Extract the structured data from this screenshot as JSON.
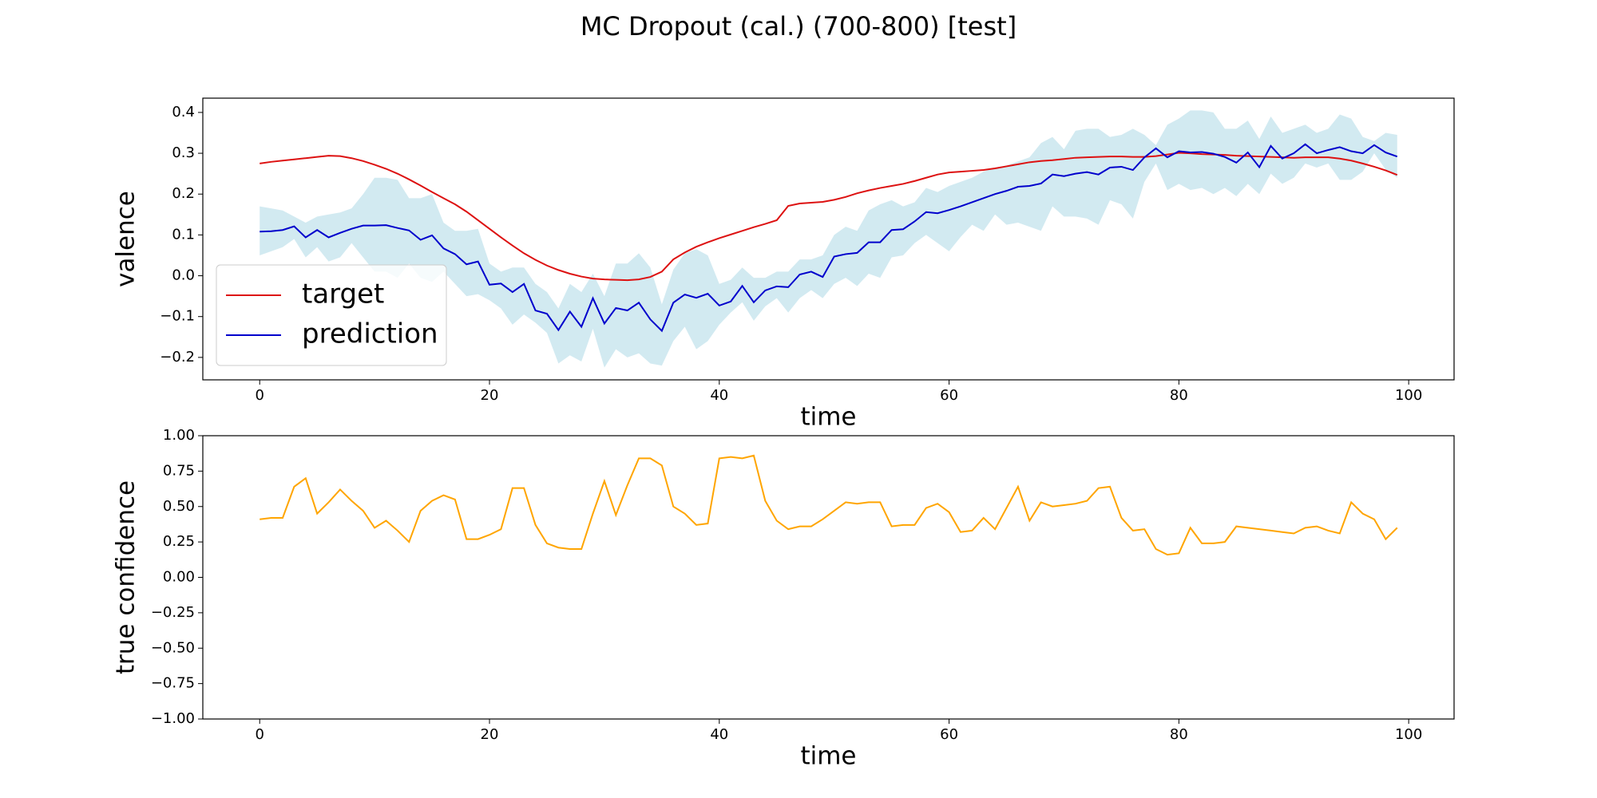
{
  "title": "MC Dropout (cal.) (700-800) [test]",
  "chart_data": [
    {
      "type": "line",
      "xlabel": "time",
      "ylabel": "valence",
      "legend": "lower left",
      "xlim": [
        -4.95,
        103.95
      ],
      "ylim": [
        -0.255,
        0.435
      ],
      "xticks": [
        0,
        20,
        40,
        60,
        80,
        100
      ],
      "yticks": [
        {
          "value": -0.2,
          "label": "−0.2"
        },
        {
          "value": -0.1,
          "label": "−0.1"
        },
        {
          "value": 0,
          "label": "0.0"
        },
        0.1,
        0.2,
        0.3,
        0.4
      ],
      "x": [
        0,
        1,
        2,
        3,
        4,
        5,
        6,
        7,
        8,
        9,
        10,
        11,
        12,
        13,
        14,
        15,
        16,
        17,
        18,
        19,
        20,
        21,
        22,
        23,
        24,
        25,
        26,
        27,
        28,
        29,
        30,
        31,
        32,
        33,
        34,
        35,
        36,
        37,
        38,
        39,
        40,
        41,
        42,
        43,
        44,
        45,
        46,
        47,
        48,
        49,
        50,
        51,
        52,
        53,
        54,
        55,
        56,
        57,
        58,
        59,
        60,
        61,
        62,
        63,
        64,
        65,
        66,
        67,
        68,
        69,
        70,
        71,
        72,
        73,
        74,
        75,
        76,
        77,
        78,
        79,
        80,
        81,
        82,
        83,
        84,
        85,
        86,
        87,
        88,
        89,
        90,
        91,
        92,
        93,
        94,
        95,
        96,
        97,
        98,
        99
      ],
      "band": {
        "color": "#add8e6",
        "upper": [
          0.17,
          0.165,
          0.16,
          0.145,
          0.13,
          0.145,
          0.15,
          0.155,
          0.165,
          0.2,
          0.24,
          0.24,
          0.235,
          0.19,
          0.19,
          0.2,
          0.13,
          0.11,
          0.11,
          0.115,
          0.03,
          0.01,
          0.02,
          0.02,
          -0.02,
          -0.04,
          -0.08,
          -0.02,
          -0.04,
          0.005,
          -0.05,
          0.03,
          0.03,
          0.055,
          0.02,
          -0.07,
          0.015,
          0.055,
          0.065,
          0.05,
          -0.02,
          -0.01,
          0.02,
          -0.005,
          -0.005,
          0.01,
          0.01,
          0.04,
          0.04,
          0.05,
          0.1,
          0.12,
          0.11,
          0.16,
          0.175,
          0.185,
          0.17,
          0.18,
          0.215,
          0.205,
          0.22,
          0.23,
          0.24,
          0.255,
          0.265,
          0.27,
          0.28,
          0.29,
          0.325,
          0.34,
          0.31,
          0.355,
          0.36,
          0.36,
          0.34,
          0.345,
          0.36,
          0.345,
          0.32,
          0.37,
          0.385,
          0.405,
          0.405,
          0.4,
          0.36,
          0.36,
          0.38,
          0.335,
          0.39,
          0.35,
          0.36,
          0.37,
          0.35,
          0.36,
          0.395,
          0.385,
          0.34,
          0.33,
          0.35,
          0.345
        ],
        "lower": [
          0.05,
          0.06,
          0.07,
          0.09,
          0.045,
          0.07,
          0.035,
          0.045,
          0.08,
          0.045,
          0.01,
          0.01,
          -0.005,
          0.03,
          -0.005,
          -0.015,
          0.01,
          -0.02,
          -0.05,
          -0.045,
          -0.06,
          -0.08,
          -0.12,
          -0.095,
          -0.115,
          -0.14,
          -0.215,
          -0.195,
          -0.21,
          -0.13,
          -0.225,
          -0.18,
          -0.2,
          -0.19,
          -0.215,
          -0.22,
          -0.16,
          -0.125,
          -0.18,
          -0.16,
          -0.12,
          -0.09,
          -0.065,
          -0.11,
          -0.075,
          -0.055,
          -0.09,
          -0.055,
          -0.035,
          -0.055,
          -0.02,
          -0.005,
          -0.025,
          0.005,
          -0.005,
          0.045,
          0.05,
          0.08,
          0.1,
          0.08,
          0.06,
          0.095,
          0.125,
          0.11,
          0.15,
          0.125,
          0.13,
          0.12,
          0.11,
          0.17,
          0.145,
          0.145,
          0.14,
          0.125,
          0.185,
          0.175,
          0.14,
          0.23,
          0.275,
          0.21,
          0.225,
          0.21,
          0.215,
          0.2,
          0.215,
          0.195,
          0.225,
          0.2,
          0.25,
          0.225,
          0.24,
          0.275,
          0.265,
          0.275,
          0.235,
          0.235,
          0.255,
          0.3,
          0.26,
          0.24
        ]
      },
      "series": [
        {
          "name": "target",
          "color": "#dd1111",
          "values": [
            0.275,
            0.279,
            0.282,
            0.285,
            0.288,
            0.291,
            0.294,
            0.293,
            0.288,
            0.281,
            0.272,
            0.262,
            0.25,
            0.236,
            0.221,
            0.205,
            0.19,
            0.175,
            0.157,
            0.136,
            0.115,
            0.094,
            0.074,
            0.055,
            0.039,
            0.025,
            0.014,
            0.005,
            -0.002,
            -0.007,
            -0.009,
            -0.01,
            -0.011,
            -0.009,
            -0.003,
            0.01,
            0.04,
            0.057,
            0.071,
            0.082,
            0.092,
            0.101,
            0.11,
            0.119,
            0.127,
            0.136,
            0.171,
            0.177,
            0.179,
            0.181,
            0.186,
            0.193,
            0.202,
            0.209,
            0.215,
            0.22,
            0.225,
            0.232,
            0.24,
            0.248,
            0.253,
            0.255,
            0.257,
            0.259,
            0.263,
            0.268,
            0.273,
            0.278,
            0.281,
            0.283,
            0.286,
            0.289,
            0.29,
            0.291,
            0.292,
            0.292,
            0.291,
            0.291,
            0.293,
            0.297,
            0.301,
            0.3,
            0.298,
            0.297,
            0.296,
            0.294,
            0.293,
            0.292,
            0.291,
            0.29,
            0.289,
            0.29,
            0.29,
            0.29,
            0.287,
            0.282,
            0.275,
            0.267,
            0.258,
            0.247
          ]
        },
        {
          "name": "prediction",
          "color": "#0000cc",
          "values": [
            0.108,
            0.109,
            0.112,
            0.121,
            0.094,
            0.112,
            0.094,
            0.105,
            0.115,
            0.123,
            0.123,
            0.124,
            0.117,
            0.111,
            0.088,
            0.099,
            0.067,
            0.053,
            0.028,
            0.035,
            -0.022,
            -0.019,
            -0.04,
            -0.02,
            -0.085,
            -0.093,
            -0.133,
            -0.088,
            -0.125,
            -0.055,
            -0.117,
            -0.079,
            -0.085,
            -0.066,
            -0.107,
            -0.135,
            -0.066,
            -0.046,
            -0.054,
            -0.044,
            -0.073,
            -0.063,
            -0.025,
            -0.065,
            -0.036,
            -0.026,
            -0.028,
            0.003,
            0.01,
            -0.003,
            0.047,
            0.053,
            0.056,
            0.082,
            0.082,
            0.112,
            0.114,
            0.133,
            0.156,
            0.153,
            0.161,
            0.17,
            0.18,
            0.19,
            0.2,
            0.208,
            0.218,
            0.22,
            0.226,
            0.248,
            0.244,
            0.25,
            0.254,
            0.248,
            0.265,
            0.267,
            0.259,
            0.29,
            0.312,
            0.29,
            0.305,
            0.302,
            0.303,
            0.299,
            0.291,
            0.277,
            0.302,
            0.266,
            0.318,
            0.287,
            0.3,
            0.322,
            0.3,
            0.308,
            0.315,
            0.305,
            0.3,
            0.32,
            0.302,
            0.292
          ]
        }
      ]
    },
    {
      "type": "line",
      "xlabel": "time",
      "ylabel": "true confidence",
      "xlim": [
        -4.95,
        103.95
      ],
      "ylim": [
        -1,
        1
      ],
      "xticks": [
        0,
        20,
        40,
        60,
        80,
        100
      ],
      "yticks": [
        {
          "value": -1,
          "label": "−1.00"
        },
        {
          "value": -0.75,
          "label": "−0.75"
        },
        {
          "value": -0.5,
          "label": "−0.50"
        },
        {
          "value": -0.25,
          "label": "−0.25"
        },
        {
          "value": 0,
          "label": "0.00"
        },
        0.25,
        {
          "value": 0.5,
          "label": "0.50"
        },
        0.75,
        {
          "value": 1,
          "label": "1.00"
        }
      ],
      "x": [
        0,
        1,
        2,
        3,
        4,
        5,
        6,
        7,
        8,
        9,
        10,
        11,
        12,
        13,
        14,
        15,
        16,
        17,
        18,
        19,
        20,
        21,
        22,
        23,
        24,
        25,
        26,
        27,
        28,
        29,
        30,
        31,
        32,
        33,
        34,
        35,
        36,
        37,
        38,
        39,
        40,
        41,
        42,
        43,
        44,
        45,
        46,
        47,
        48,
        49,
        50,
        51,
        52,
        53,
        54,
        55,
        56,
        57,
        58,
        59,
        60,
        61,
        62,
        63,
        64,
        65,
        66,
        67,
        68,
        69,
        70,
        71,
        72,
        73,
        74,
        75,
        76,
        77,
        78,
        79,
        80,
        81,
        82,
        83,
        84,
        85,
        86,
        87,
        88,
        89,
        90,
        91,
        92,
        93,
        94,
        95,
        96,
        97,
        98,
        99
      ],
      "series": [
        {
          "color": "#ffa500",
          "values": [
            0.41,
            0.42,
            0.42,
            0.64,
            0.7,
            0.45,
            0.53,
            0.62,
            0.54,
            0.47,
            0.35,
            0.4,
            0.33,
            0.25,
            0.47,
            0.54,
            0.58,
            0.55,
            0.27,
            0.27,
            0.3,
            0.34,
            0.63,
            0.63,
            0.37,
            0.24,
            0.21,
            0.2,
            0.2,
            0.45,
            0.68,
            0.44,
            0.65,
            0.84,
            0.84,
            0.79,
            0.5,
            0.45,
            0.37,
            0.38,
            0.84,
            0.85,
            0.84,
            0.86,
            0.54,
            0.4,
            0.34,
            0.36,
            0.36,
            0.41,
            0.47,
            0.53,
            0.52,
            0.53,
            0.53,
            0.36,
            0.37,
            0.37,
            0.49,
            0.52,
            0.46,
            0.32,
            0.33,
            0.42,
            0.34,
            0.49,
            0.64,
            0.4,
            0.53,
            0.5,
            0.51,
            0.52,
            0.54,
            0.63,
            0.64,
            0.42,
            0.33,
            0.34,
            0.2,
            0.16,
            0.17,
            0.35,
            0.24,
            0.24,
            0.25,
            0.36,
            0.35,
            0.34,
            0.33,
            0.32,
            0.31,
            0.35,
            0.36,
            0.33,
            0.31,
            0.53,
            0.45,
            0.41,
            0.27,
            0.35
          ]
        }
      ]
    }
  ]
}
